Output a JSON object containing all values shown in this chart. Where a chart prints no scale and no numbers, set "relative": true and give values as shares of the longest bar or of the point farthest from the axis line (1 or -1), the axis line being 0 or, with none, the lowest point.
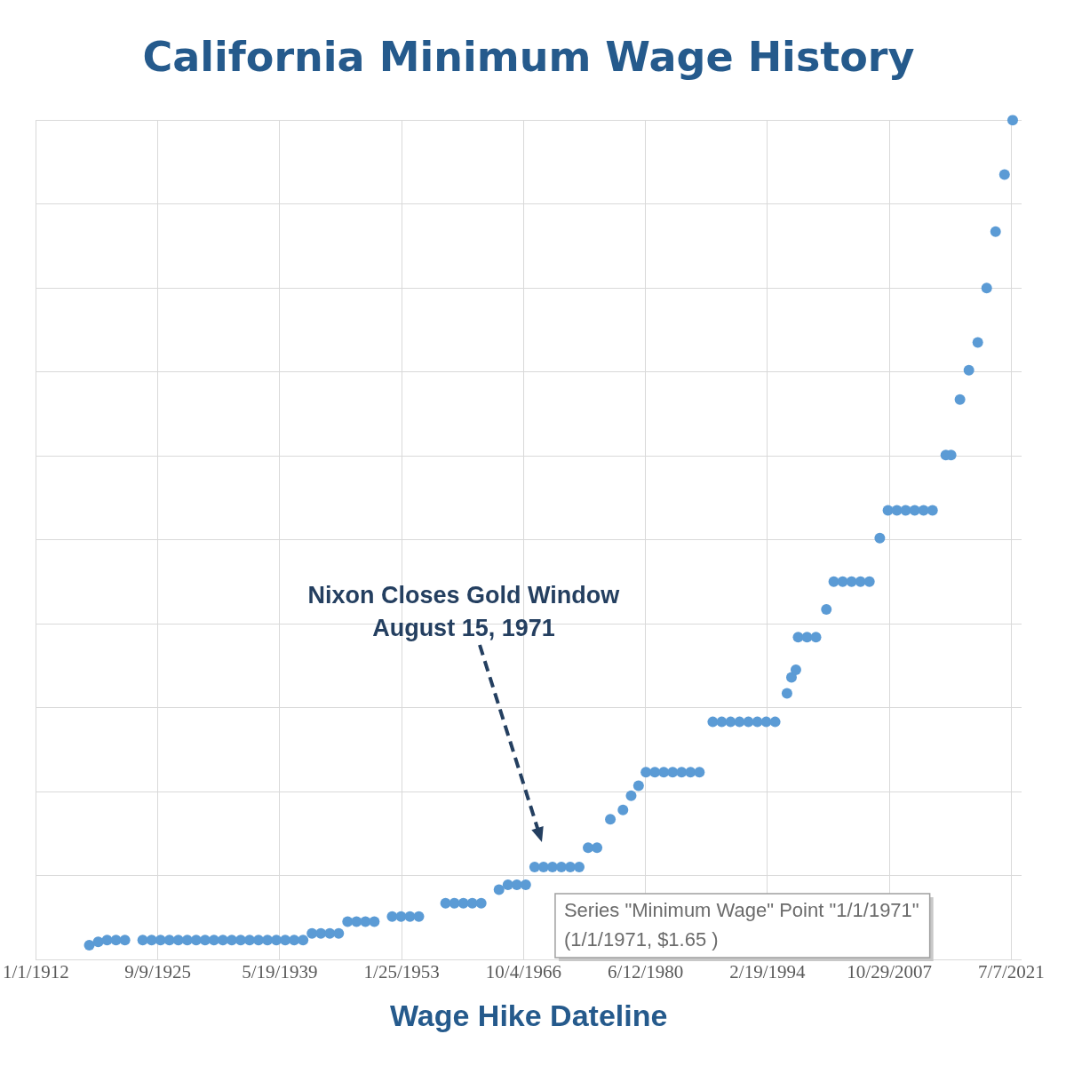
{
  "chart_data": {
    "type": "scatter",
    "title": "California Minimum Wage History",
    "xlabel": "Wage Hike Dateline",
    "relative": true,
    "grid": true,
    "legend": false,
    "marker": "circle",
    "tick_labels": "x",
    "xlim": [
      "1912-01-01",
      "2022-09-01"
    ],
    "xticks": [
      {
        "value": "1912-01-01",
        "label": "1/1/1912"
      },
      {
        "value": "1925-09-09",
        "label": "9/9/1925"
      },
      {
        "value": "1939-05-19",
        "label": "5/19/1939"
      },
      {
        "value": "1953-01-25",
        "label": "1/25/1953"
      },
      {
        "value": "1966-10-04",
        "label": "10/4/1966"
      },
      {
        "value": "1980-06-12",
        "label": "6/12/1980"
      },
      {
        "value": "1994-02-19",
        "label": "2/19/1994"
      },
      {
        "value": "2007-10-29",
        "label": "10/29/2007"
      },
      {
        "value": "2021-07-07",
        "label": "7/7/2021"
      }
    ],
    "x": [
      "1918-01-01",
      "1919-01-01",
      "1920-01-01",
      "1921-01-01",
      "1922-01-01",
      "1924-01-01",
      "1925-01-01",
      "1926-01-01",
      "1927-01-01",
      "1928-01-01",
      "1929-01-01",
      "1930-01-01",
      "1931-01-01",
      "1932-01-01",
      "1933-01-01",
      "1934-01-01",
      "1935-01-01",
      "1936-01-01",
      "1937-01-01",
      "1938-01-01",
      "1939-01-01",
      "1940-01-01",
      "1941-01-01",
      "1942-01-01",
      "1943-01-01",
      "1944-01-01",
      "1945-01-01",
      "1946-01-01",
      "1947-01-01",
      "1948-01-01",
      "1949-01-01",
      "1950-01-01",
      "1952-01-01",
      "1953-01-01",
      "1954-01-01",
      "1955-01-01",
      "1958-01-01",
      "1959-01-01",
      "1960-01-01",
      "1961-01-01",
      "1962-01-01",
      "1964-01-01",
      "1965-01-01",
      "1966-01-01",
      "1967-01-01",
      "1968-01-01",
      "1969-01-01",
      "1970-01-01",
      "1971-01-01",
      "1972-01-01",
      "1973-01-01",
      "1974-01-01",
      "1975-01-01",
      "1976-07-01",
      "1977-12-01",
      "1978-11-01",
      "1979-09-01",
      "1980-07-01",
      "1981-07-01",
      "1982-07-01",
      "1983-07-01",
      "1984-07-01",
      "1985-07-01",
      "1986-07-01",
      "1988-01-01",
      "1989-01-01",
      "1990-01-01",
      "1991-01-01",
      "1992-01-01",
      "1993-01-01",
      "1994-01-01",
      "1995-01-01",
      "1996-05-01",
      "1996-11-01",
      "1997-05-01",
      "1997-08-01",
      "1998-08-01",
      "1999-08-01",
      "2000-10-01",
      "2001-08-01",
      "2002-08-01",
      "2003-08-01",
      "2004-08-01",
      "2005-08-01",
      "2006-10-01",
      "2007-09-01",
      "2008-09-01",
      "2009-09-01",
      "2010-09-01",
      "2011-09-01",
      "2012-09-01",
      "2014-03-01",
      "2014-10-01",
      "2015-10-01",
      "2016-10-01",
      "2017-10-01",
      "2018-10-01",
      "2019-10-01",
      "2020-10-01",
      "2021-09-01"
    ],
    "series": [
      {
        "color": "#5b9bd5",
        "values": [
          0.017,
          0.021,
          0.023,
          0.023,
          0.023,
          0.023,
          0.023,
          0.023,
          0.023,
          0.023,
          0.023,
          0.023,
          0.023,
          0.023,
          0.023,
          0.023,
          0.023,
          0.023,
          0.023,
          0.023,
          0.023,
          0.023,
          0.023,
          0.023,
          0.031,
          0.031,
          0.031,
          0.031,
          0.045,
          0.045,
          0.045,
          0.045,
          0.051,
          0.051,
          0.051,
          0.051,
          0.067,
          0.067,
          0.067,
          0.067,
          0.067,
          0.083,
          0.089,
          0.089,
          0.089,
          0.11,
          0.11,
          0.11,
          0.11,
          0.11,
          0.11,
          0.133,
          0.133,
          0.167,
          0.178,
          0.195,
          0.207,
          0.223,
          0.223,
          0.223,
          0.223,
          0.223,
          0.223,
          0.223,
          0.283,
          0.283,
          0.283,
          0.283,
          0.283,
          0.283,
          0.283,
          0.283,
          0.317,
          0.336,
          0.345,
          0.384,
          0.384,
          0.384,
          0.417,
          0.45,
          0.45,
          0.45,
          0.45,
          0.45,
          0.502,
          0.535,
          0.535,
          0.535,
          0.535,
          0.535,
          0.535,
          0.601,
          0.601,
          0.667,
          0.702,
          0.735,
          0.8,
          0.867,
          0.935,
          1
        ]
      }
    ],
    "annotations": [
      "Nixon Closes Gold Window\nAugust 15, 1971",
      {
        "text": "Series \"Minimum Wage\" Point \"1/1/1971\"\n(1/1/1971, $1.65 )",
        "x": "1971-01-01",
        "y": 0.11
      }
    ]
  }
}
